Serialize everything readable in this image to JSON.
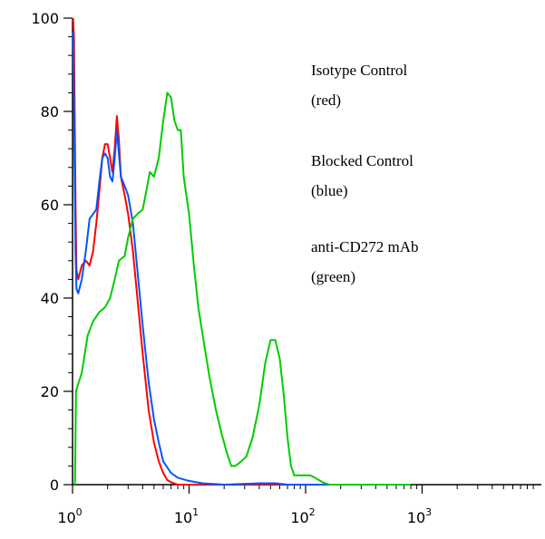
{
  "chart_data": {
    "type": "line",
    "title": "",
    "xlabel": "",
    "ylabel": "",
    "x_scale": "log",
    "xlim": [
      1,
      1000
    ],
    "ylim": [
      0,
      100
    ],
    "y_ticks": [
      0,
      20,
      40,
      60,
      80,
      100
    ],
    "x_ticks": [
      {
        "value": 1,
        "base": "10",
        "exp": "0"
      },
      {
        "value": 10,
        "base": "10",
        "exp": "1"
      },
      {
        "value": 100,
        "base": "10",
        "exp": "2"
      },
      {
        "value": 1000,
        "base": "10",
        "exp": "3"
      }
    ],
    "grid": false,
    "annotations": [
      {
        "lines": [
          "Isotype Control",
          "(red)"
        ]
      },
      {
        "lines": [
          "Blocked Control",
          "(blue)"
        ]
      },
      {
        "lines": [
          "anti-CD272 mAb",
          "(green)"
        ]
      }
    ],
    "series": [
      {
        "color": "#ff0000",
        "points": [
          [
            1.01,
            100
          ],
          [
            1.03,
            96
          ],
          [
            1.06,
            60
          ],
          [
            1.08,
            46
          ],
          [
            1.12,
            44
          ],
          [
            1.2,
            47
          ],
          [
            1.3,
            48
          ],
          [
            1.4,
            47
          ],
          [
            1.5,
            50
          ],
          [
            1.6,
            56
          ],
          [
            1.7,
            63
          ],
          [
            1.8,
            70
          ],
          [
            1.9,
            73
          ],
          [
            2.0,
            73
          ],
          [
            2.1,
            70
          ],
          [
            2.2,
            67
          ],
          [
            2.3,
            72
          ],
          [
            2.4,
            79
          ],
          [
            2.5,
            74
          ],
          [
            2.6,
            66
          ],
          [
            2.8,
            62
          ],
          [
            3.0,
            58
          ],
          [
            3.3,
            50
          ],
          [
            3.6,
            40
          ],
          [
            4.0,
            28
          ],
          [
            4.5,
            16
          ],
          [
            5.0,
            9
          ],
          [
            5.5,
            5
          ],
          [
            6.0,
            2.5
          ],
          [
            6.5,
            1
          ],
          [
            7.0,
            0.5
          ],
          [
            8.0,
            0
          ],
          [
            800,
            0
          ]
        ]
      },
      {
        "color": "#0055ff",
        "points": [
          [
            1.01,
            97
          ],
          [
            1.03,
            80
          ],
          [
            1.06,
            50
          ],
          [
            1.08,
            42
          ],
          [
            1.12,
            41
          ],
          [
            1.2,
            44
          ],
          [
            1.3,
            50
          ],
          [
            1.4,
            57
          ],
          [
            1.5,
            58
          ],
          [
            1.6,
            59
          ],
          [
            1.7,
            65
          ],
          [
            1.8,
            70
          ],
          [
            1.9,
            71
          ],
          [
            2.0,
            70
          ],
          [
            2.1,
            66
          ],
          [
            2.2,
            65
          ],
          [
            2.3,
            70
          ],
          [
            2.4,
            76
          ],
          [
            2.5,
            71
          ],
          [
            2.6,
            66
          ],
          [
            2.8,
            64
          ],
          [
            3.0,
            62
          ],
          [
            3.3,
            56
          ],
          [
            3.6,
            46
          ],
          [
            4.0,
            34
          ],
          [
            4.5,
            22
          ],
          [
            5.0,
            14
          ],
          [
            5.5,
            9
          ],
          [
            6.0,
            5
          ],
          [
            7.0,
            2.5
          ],
          [
            8.0,
            1.5
          ],
          [
            10.0,
            0.8
          ],
          [
            13.0,
            0.3
          ],
          [
            20.0,
            0
          ],
          [
            40.0,
            0.3
          ],
          [
            55.0,
            0.3
          ],
          [
            70.0,
            0
          ],
          [
            800,
            0
          ]
        ]
      },
      {
        "color": "#00cc00",
        "points": [
          [
            1.05,
            0
          ],
          [
            1.07,
            20
          ],
          [
            1.1,
            21
          ],
          [
            1.2,
            24
          ],
          [
            1.35,
            32
          ],
          [
            1.5,
            35
          ],
          [
            1.7,
            37
          ],
          [
            1.9,
            38
          ],
          [
            2.1,
            40
          ],
          [
            2.3,
            44
          ],
          [
            2.5,
            48
          ],
          [
            2.8,
            49
          ],
          [
            3.0,
            53
          ],
          [
            3.3,
            57
          ],
          [
            3.6,
            58
          ],
          [
            4.0,
            59
          ],
          [
            4.3,
            63
          ],
          [
            4.6,
            67
          ],
          [
            5.0,
            66
          ],
          [
            5.5,
            70
          ],
          [
            6.0,
            78
          ],
          [
            6.5,
            84
          ],
          [
            7.0,
            83
          ],
          [
            7.5,
            78
          ],
          [
            8.0,
            76
          ],
          [
            8.5,
            76
          ],
          [
            9.0,
            66
          ],
          [
            10.0,
            58
          ],
          [
            11.0,
            47
          ],
          [
            12.0,
            38
          ],
          [
            13.5,
            30
          ],
          [
            15.0,
            23
          ],
          [
            17.0,
            16
          ],
          [
            19.0,
            11
          ],
          [
            21.0,
            7
          ],
          [
            23.0,
            4
          ],
          [
            25.0,
            4
          ],
          [
            28.0,
            5
          ],
          [
            31.0,
            6
          ],
          [
            35.0,
            10
          ],
          [
            40.0,
            17
          ],
          [
            45.0,
            26
          ],
          [
            50.0,
            31
          ],
          [
            55.0,
            31
          ],
          [
            60.0,
            27
          ],
          [
            65.0,
            19
          ],
          [
            70.0,
            10
          ],
          [
            75.0,
            4
          ],
          [
            80.0,
            2
          ],
          [
            90.0,
            2
          ],
          [
            100.0,
            2
          ],
          [
            110.0,
            2
          ],
          [
            120.0,
            1.5
          ],
          [
            140.0,
            0.5
          ],
          [
            160.0,
            0
          ],
          [
            800,
            0
          ]
        ]
      }
    ]
  }
}
